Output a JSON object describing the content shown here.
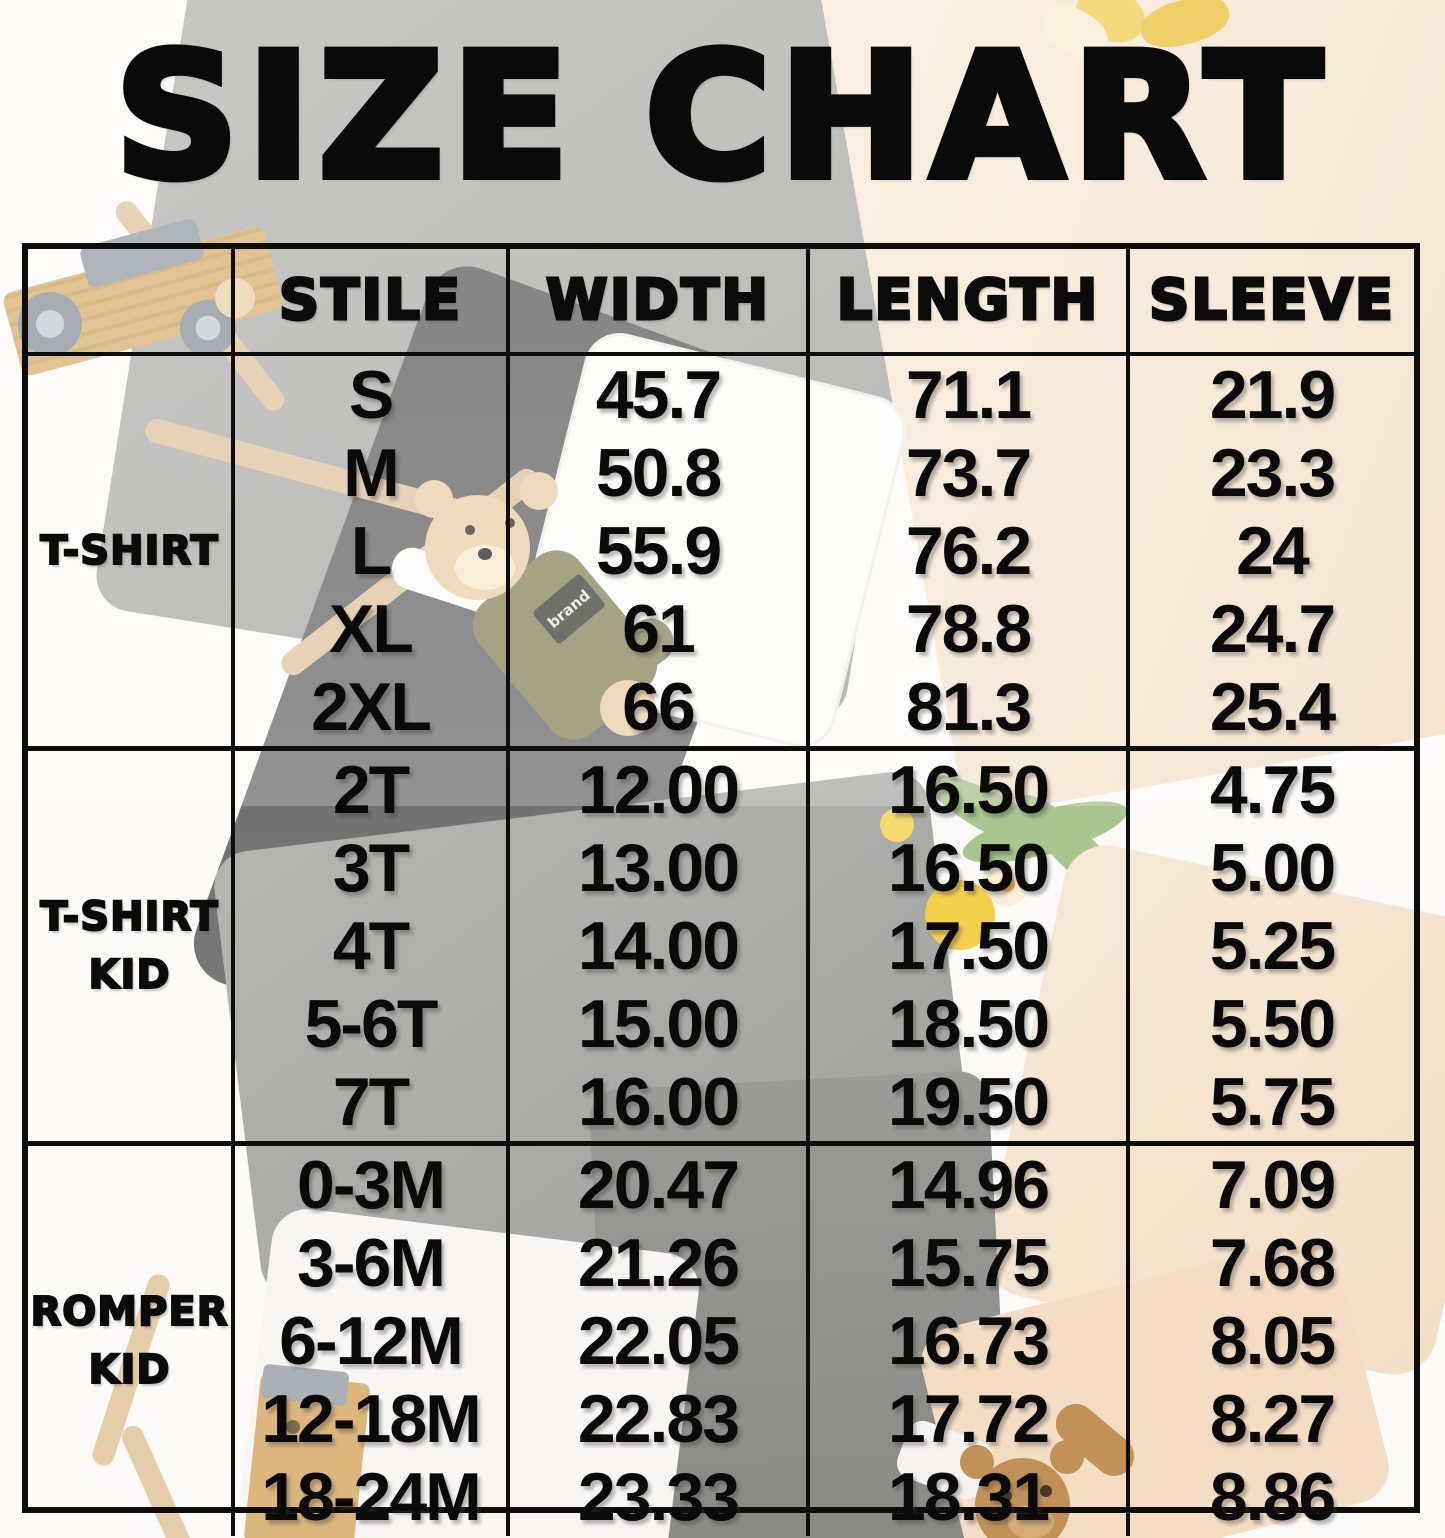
{
  "title": "SIZE CHART",
  "background": {
    "bear_patch_label": "brand"
  },
  "palette": {
    "text_black": "#0a0a0a",
    "table_border": "#0d0d0d",
    "gray_shirt": "#b2b2b0",
    "dark_shirt": "#6e6e6e",
    "cream_shirt": "#f4e6d4",
    "bear_tan": "#ead0ab",
    "bear_overalls_olive": "#8e8963",
    "wood_toy": "#d9b277",
    "tulip_yellow": "#f3cf4b",
    "leaf_green": "#a9c68e",
    "peach_romper": "#f3ddc5"
  },
  "chart_data": {
    "type": "table",
    "title": "SIZE CHART",
    "columns": [
      "",
      "STILE",
      "WIDTH",
      "LENGTH",
      "SLEEVE"
    ],
    "row_groups": [
      {
        "label": "T-SHIRT",
        "label_lines": [
          "T-SHIRT"
        ],
        "rows": [
          {
            "size": "S",
            "width": "45.7",
            "length": "71.1",
            "sleeve": "21.9"
          },
          {
            "size": "M",
            "width": "50.8",
            "length": "73.7",
            "sleeve": "23.3"
          },
          {
            "size": "L",
            "width": "55.9",
            "length": "76.2",
            "sleeve": "24"
          },
          {
            "size": "XL",
            "width": "61",
            "length": "78.8",
            "sleeve": "24.7"
          },
          {
            "size": "2XL",
            "width": "66",
            "length": "81.3",
            "sleeve": "25.4"
          }
        ]
      },
      {
        "label": "T-SHIRT KID",
        "label_lines": [
          "T-SHIRT",
          "KID"
        ],
        "rows": [
          {
            "size": "2T",
            "width": "12.00",
            "length": "16.50",
            "sleeve": "4.75"
          },
          {
            "size": "3T",
            "width": "13.00",
            "length": "16.50",
            "sleeve": "5.00"
          },
          {
            "size": "4T",
            "width": "14.00",
            "length": "17.50",
            "sleeve": "5.25"
          },
          {
            "size": "5-6T",
            "width": "15.00",
            "length": "18.50",
            "sleeve": "5.50"
          },
          {
            "size": "7T",
            "width": "16.00",
            "length": "19.50",
            "sleeve": "5.75"
          }
        ]
      },
      {
        "label": "ROMPER KID",
        "label_lines": [
          "ROMPER",
          "KID"
        ],
        "rows": [
          {
            "size": "0-3M",
            "width": "20.47",
            "length": "14.96",
            "sleeve": "7.09"
          },
          {
            "size": "3-6M",
            "width": "21.26",
            "length": "15.75",
            "sleeve": "7.68"
          },
          {
            "size": "6-12M",
            "width": "22.05",
            "length": "16.73",
            "sleeve": "8.05"
          },
          {
            "size": "12-18M",
            "width": "22.83",
            "length": "17.72",
            "sleeve": "8.27"
          },
          {
            "size": "18-24M",
            "width": "23.33",
            "length": "18.31",
            "sleeve": "8.86"
          }
        ]
      }
    ]
  }
}
